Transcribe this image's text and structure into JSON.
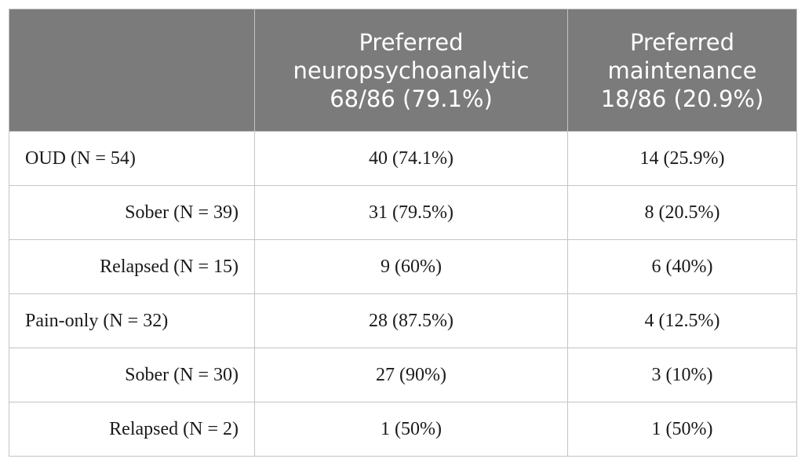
{
  "table": {
    "header": [
      [
        "Preferred",
        "neuropsychoanalytic",
        "68/86 (79.1%)"
      ],
      [
        "Preferred",
        "maintenance",
        "18/86 (20.9%)"
      ]
    ],
    "rows": [
      {
        "label": "OUD (N = 54)",
        "indent": false,
        "cells": [
          "40 (74.1%)",
          "14 (25.9%)"
        ]
      },
      {
        "label": "Sober (N = 39)",
        "indent": true,
        "cells": [
          "31 (79.5%)",
          "8 (20.5%)"
        ]
      },
      {
        "label": "Relapsed (N = 15)",
        "indent": true,
        "cells": [
          "9 (60%)",
          "6 (40%)"
        ]
      },
      {
        "label": "Pain-only (N = 32)",
        "indent": false,
        "cells": [
          "28 (87.5%)",
          "4 (12.5%)"
        ]
      },
      {
        "label": "Sober (N = 30)",
        "indent": true,
        "cells": [
          "27 (90%)",
          "3 (10%)"
        ]
      },
      {
        "label": "Relapsed (N = 2)",
        "indent": true,
        "cells": [
          "1 (50%)",
          "1 (50%)"
        ]
      }
    ]
  }
}
